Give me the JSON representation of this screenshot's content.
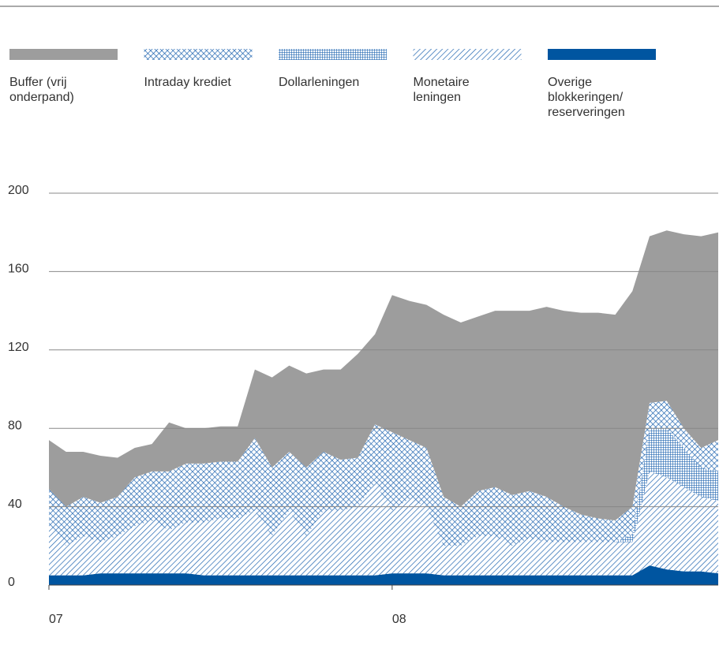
{
  "chart_data": {
    "type": "stacked_area",
    "x": [
      0,
      0.6,
      1.2,
      1.8,
      2.4,
      3,
      3.6,
      4.2,
      4.8,
      5.4,
      6,
      6.6,
      7.2,
      7.8,
      8.4,
      9,
      9.6,
      10.2,
      10.8,
      11.4,
      12,
      12.6,
      13.2,
      13.8,
      14.4,
      15,
      15.6,
      16.2,
      16.8,
      17.4,
      18,
      18.6,
      19.2,
      19.8,
      20.4,
      21,
      21.6,
      22.2,
      22.8,
      23.4
    ],
    "xlim": [
      0,
      23.4
    ],
    "xticks": [
      {
        "value": 0,
        "label": "07"
      },
      {
        "value": 12,
        "label": "08"
      }
    ],
    "ylim": [
      0,
      200
    ],
    "yticks": [
      0,
      40,
      80,
      120,
      160,
      200
    ],
    "grid": true,
    "series": [
      {
        "name": "Buffer (vrij onderpand)",
        "color": "#9d9d9d",
        "pattern": "solid",
        "values": [
          25,
          28,
          23,
          24,
          20,
          15,
          14,
          25,
          18,
          18,
          18,
          18,
          35,
          46,
          44,
          48,
          42,
          46,
          53,
          46,
          70,
          71,
          73,
          93,
          94,
          89,
          90,
          94,
          92,
          97,
          100,
          103,
          105,
          105,
          110,
          85,
          87,
          99,
          108,
          106
        ]
      },
      {
        "name": "Intraday krediet",
        "color": "#1f64b0",
        "pattern": "crosshatch",
        "values": [
          19,
          20,
          20,
          20,
          20,
          25,
          25,
          30,
          30,
          30,
          29,
          29,
          37,
          35,
          30,
          35,
          30,
          26,
          25,
          30,
          40,
          30,
          30,
          25,
          20,
          23,
          25,
          26,
          24,
          23,
          18,
          14,
          12,
          11,
          14,
          13,
          14,
          10,
          10,
          16
        ]
      },
      {
        "name": "Dollarleningen",
        "color": "#1f64b0",
        "pattern": "grid",
        "values": [
          0,
          0,
          0,
          0,
          0,
          0,
          0,
          0,
          0,
          0,
          0,
          0,
          0,
          0,
          0,
          0,
          0,
          0,
          0,
          0,
          0,
          0,
          0,
          0,
          0,
          0,
          0,
          0,
          0,
          0,
          0,
          0,
          0,
          0,
          4,
          22,
          25,
          20,
          15,
          15
        ]
      },
      {
        "name": "Monetaire leningen",
        "color": "#1f64b0",
        "pattern": "diagonal",
        "values": [
          25,
          15,
          20,
          16,
          19,
          24,
          27,
          22,
          26,
          27,
          29,
          29,
          33,
          20,
          33,
          20,
          33,
          33,
          35,
          47,
          32,
          38,
          34,
          15,
          15,
          20,
          20,
          15,
          19,
          17,
          17,
          17,
          17,
          17,
          17,
          48,
          47,
          43,
          38,
          37
        ]
      },
      {
        "name": "Overige blokkeringen/ reserveringen",
        "color": "#0055a0",
        "pattern": "solid",
        "values": [
          5,
          5,
          5,
          6,
          6,
          6,
          6,
          6,
          6,
          5,
          5,
          5,
          5,
          5,
          5,
          5,
          5,
          5,
          5,
          5,
          6,
          6,
          6,
          5,
          5,
          5,
          5,
          5,
          5,
          5,
          5,
          5,
          5,
          5,
          5,
          10,
          8,
          7,
          7,
          6
        ]
      }
    ]
  }
}
